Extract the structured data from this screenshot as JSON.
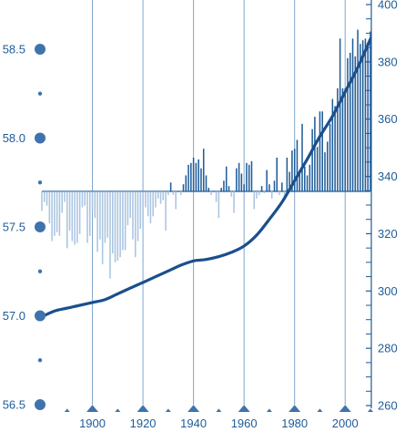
{
  "chart_data": {
    "type": "bar+line",
    "xlim": [
      1880,
      2010
    ],
    "x_ticks": [
      1900,
      1920,
      1940,
      1960,
      1980,
      2000
    ],
    "left_axis": {
      "ticks": [
        56.5,
        57.0,
        57.5,
        58.0,
        58.5
      ],
      "tick_labels": [
        "56.5",
        "57.0",
        "57.5",
        "58.0",
        "58.5"
      ],
      "baseline": 57.7
    },
    "right_axis": {
      "ticks": [
        260,
        280,
        300,
        320,
        340,
        360,
        380,
        400
      ],
      "tick_labels": [
        "260",
        "280",
        "300",
        "320",
        "340",
        "360",
        "380",
        "400"
      ],
      "ylim": [
        260,
        400
      ]
    },
    "bars": {
      "x": [
        1880,
        1881,
        1882,
        1883,
        1884,
        1885,
        1886,
        1887,
        1888,
        1889,
        1890,
        1891,
        1892,
        1893,
        1894,
        1895,
        1896,
        1897,
        1898,
        1899,
        1900,
        1901,
        1902,
        1903,
        1904,
        1905,
        1906,
        1907,
        1908,
        1909,
        1910,
        1911,
        1912,
        1913,
        1914,
        1915,
        1916,
        1917,
        1918,
        1919,
        1920,
        1921,
        1922,
        1923,
        1924,
        1925,
        1926,
        1927,
        1928,
        1929,
        1930,
        1931,
        1932,
        1933,
        1934,
        1935,
        1936,
        1937,
        1938,
        1939,
        1940,
        1941,
        1942,
        1943,
        1944,
        1945,
        1946,
        1947,
        1948,
        1949,
        1950,
        1951,
        1952,
        1953,
        1954,
        1955,
        1956,
        1957,
        1958,
        1959,
        1960,
        1961,
        1962,
        1963,
        1964,
        1965,
        1966,
        1967,
        1968,
        1969,
        1970,
        1971,
        1972,
        1973,
        1974,
        1975,
        1976,
        1977,
        1978,
        1979,
        1980,
        1981,
        1982,
        1983,
        1984,
        1985,
        1986,
        1987,
        1988,
        1989,
        1990,
        1991,
        1992,
        1993,
        1994,
        1995,
        1996,
        1997,
        1998,
        1999,
        2000,
        2001,
        2002,
        2003,
        2004,
        2005,
        2006,
        2007,
        2008,
        2009,
        2010
      ],
      "values": [
        57.59,
        57.64,
        57.62,
        57.52,
        57.42,
        57.45,
        57.47,
        57.45,
        57.58,
        57.64,
        57.38,
        57.48,
        57.42,
        57.4,
        57.41,
        57.46,
        57.61,
        57.62,
        57.41,
        57.45,
        57.59,
        57.55,
        57.36,
        57.43,
        57.29,
        57.41,
        57.44,
        57.21,
        57.35,
        57.3,
        57.31,
        57.33,
        57.37,
        57.37,
        57.51,
        57.55,
        57.43,
        57.33,
        57.42,
        57.49,
        57.5,
        57.61,
        57.56,
        57.52,
        57.56,
        57.61,
        57.66,
        57.63,
        57.65,
        57.48,
        57.68,
        57.75,
        57.68,
        57.6,
        57.7,
        57.68,
        57.74,
        57.79,
        57.85,
        57.86,
        57.89,
        57.86,
        57.88,
        57.83,
        57.94,
        57.79,
        57.72,
        57.68,
        57.7,
        57.64,
        57.55,
        57.72,
        57.76,
        57.84,
        57.73,
        57.67,
        57.58,
        57.83,
        57.86,
        57.8,
        57.74,
        57.86,
        57.85,
        57.87,
        57.6,
        57.66,
        57.68,
        57.73,
        57.69,
        57.82,
        57.74,
        57.66,
        57.76,
        57.89,
        57.68,
        57.75,
        57.65,
        57.89,
        57.81,
        57.93,
        57.94,
        57.99,
        57.82,
        58.08,
        57.84,
        57.79,
        57.85,
        58.05,
        58.12,
        57.95,
        58.15,
        58.15,
        57.92,
        57.98,
        58.08,
        58.22,
        58.18,
        58.28,
        58.56,
        58.28,
        58.28,
        58.45,
        58.48,
        58.56,
        58.46,
        58.61,
        58.53,
        58.55,
        58.56,
        58.54,
        58.6
      ]
    },
    "line": {
      "axis": "right",
      "x": [
        1880,
        1885,
        1890,
        1895,
        1900,
        1905,
        1910,
        1915,
        1920,
        1925,
        1930,
        1935,
        1940,
        1945,
        1950,
        1955,
        1960,
        1965,
        1970,
        1975,
        1980,
        1985,
        1990,
        1995,
        2000,
        2005,
        2010
      ],
      "values": [
        291,
        293,
        294,
        295,
        296,
        297,
        299,
        301,
        303,
        305,
        307,
        309,
        310.5,
        311,
        312,
        313.5,
        315.7,
        319.5,
        325,
        331,
        338.5,
        346,
        354,
        361,
        369.5,
        378,
        388
      ]
    },
    "colors": {
      "positive_bar": "#1f5c99",
      "negative_bar": "#a9c4e0",
      "line": "#1a4f8c",
      "axis": "#1f5c99",
      "grid": "#7fa6cc",
      "marker": "#3f73ad"
    }
  }
}
